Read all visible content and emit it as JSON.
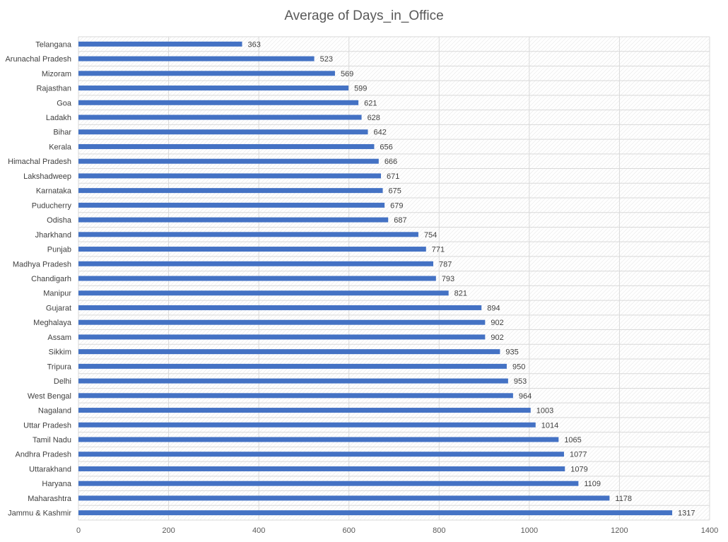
{
  "chart_data": {
    "type": "bar",
    "orientation": "horizontal",
    "title": "Average of Days_in_Office",
    "xlabel": "",
    "ylabel": "",
    "xlim": [
      0,
      1400
    ],
    "x_ticks": [
      0,
      200,
      400,
      600,
      800,
      1000,
      1200,
      1400
    ],
    "grid": true,
    "legend": "none",
    "bar_color": "#4472C4",
    "categories": [
      "Telangana",
      "Arunachal Pradesh",
      "Mizoram",
      "Rajasthan",
      "Goa",
      "Ladakh",
      "Bihar",
      "Kerala",
      "Himachal Pradesh",
      "Lakshadweep",
      "Karnataka",
      "Puducherry",
      "Odisha",
      "Jharkhand",
      "Punjab",
      "Madhya Pradesh",
      "Chandigarh",
      "Manipur",
      "Gujarat",
      "Meghalaya",
      "Assam",
      "Sikkim",
      "Tripura",
      "Delhi",
      "West Bengal",
      "Nagaland",
      "Uttar Pradesh",
      "Tamil Nadu",
      "Andhra Pradesh",
      "Uttarakhand",
      "Haryana",
      "Maharashtra",
      "Jammu & Kashmir"
    ],
    "values": [
      363,
      523,
      569,
      599,
      621,
      628,
      642,
      656,
      666,
      671,
      675,
      679,
      687,
      754,
      771,
      787,
      793,
      821,
      894,
      902,
      902,
      935,
      950,
      953,
      964,
      1003,
      1014,
      1065,
      1077,
      1079,
      1109,
      1178,
      1317
    ]
  }
}
